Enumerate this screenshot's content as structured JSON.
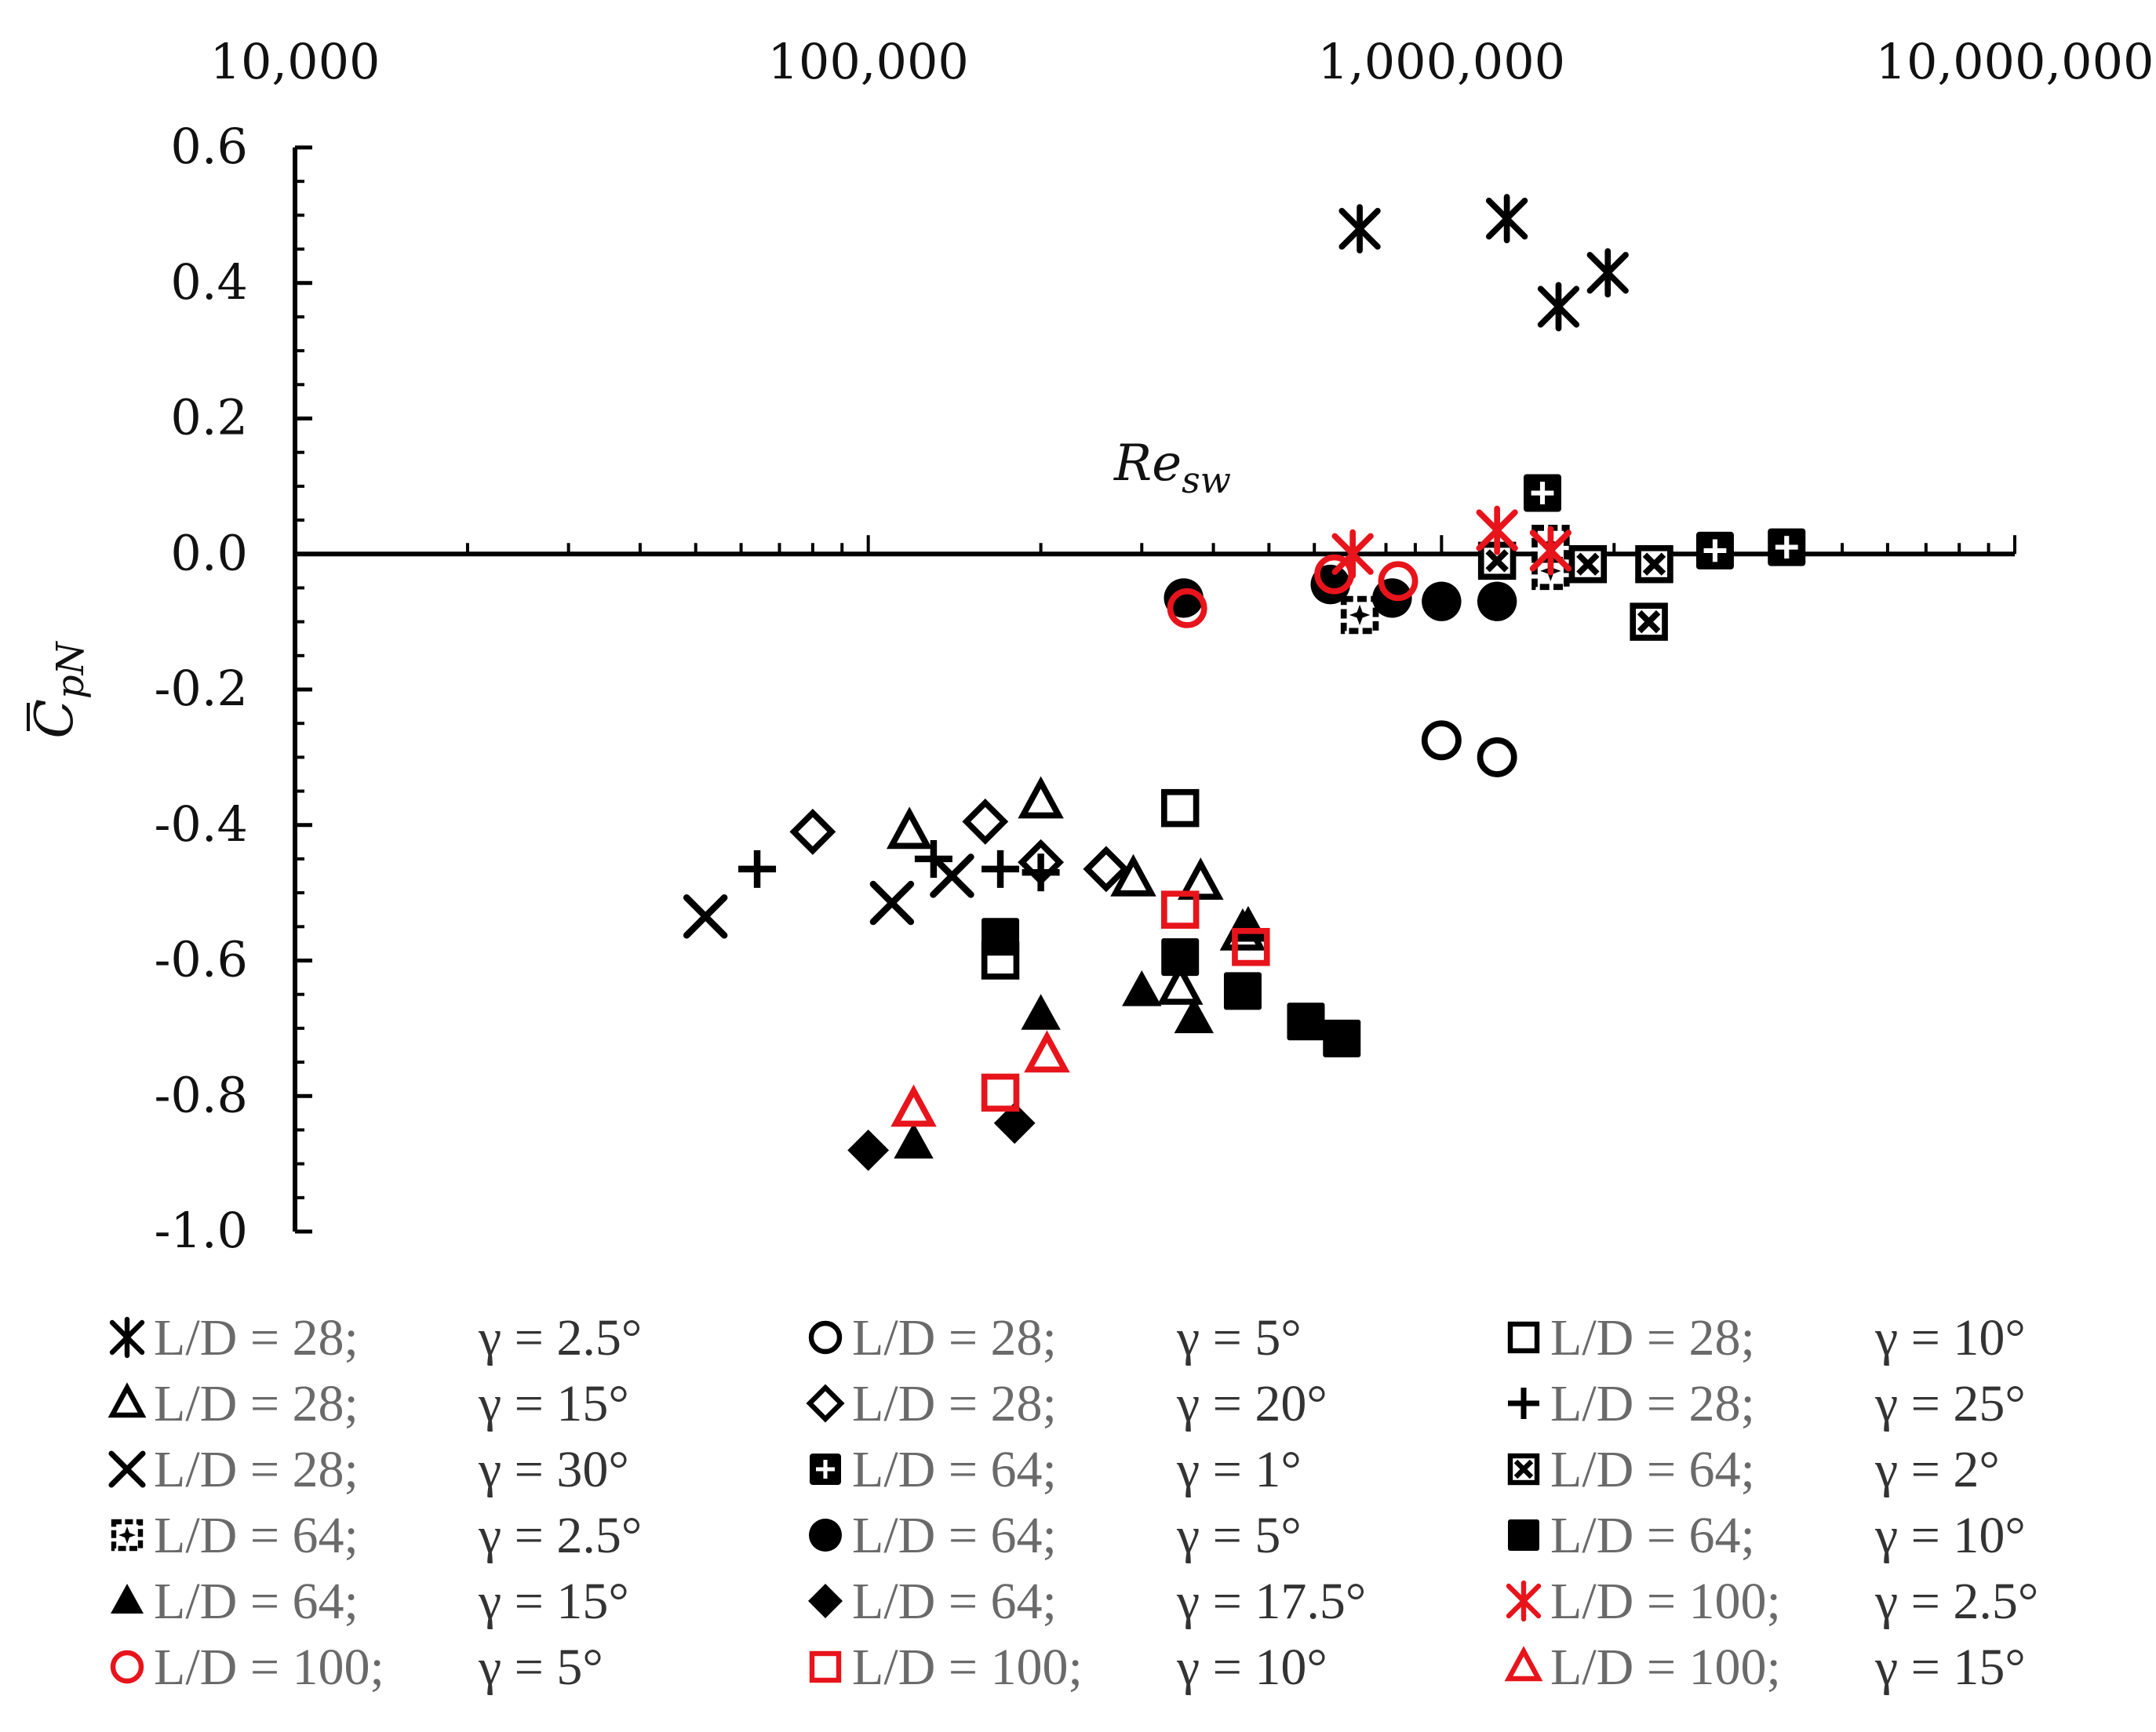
{
  "chart_data": {
    "type": "scatter",
    "x_scale": "log",
    "xlim": [
      10000,
      10000000
    ],
    "ylim": [
      -1.0,
      0.6
    ],
    "x_tick_labels": [
      "10,000",
      "100,000",
      "1,000,000",
      "10,000,000"
    ],
    "x_ticks": [
      10000,
      100000,
      1000000,
      10000000
    ],
    "y_ticks": [
      0.6,
      0.4,
      0.2,
      0.0,
      -0.2,
      -0.4,
      -0.6,
      -0.8,
      -1.0
    ],
    "y_tick_labels": [
      "0.6",
      "0.4",
      "0.2",
      "0.0",
      "-0.2",
      "-0.4",
      "-0.6",
      "-0.8",
      "-1.0"
    ],
    "xlabel_main": "Re",
    "xlabel_sub": "sw",
    "ylabel_main": "C",
    "ylabel_sub": "pN",
    "series": [
      {
        "name": "L/D = 28; γ = 2.5°",
        "ld": "L/D = 28;",
        "gamma": "γ = 2.5°",
        "marker": "asterisk",
        "color": "#000000",
        "points": [
          [
            720000,
            0.48
          ],
          [
            1300000,
            0.495
          ],
          [
            1600000,
            0.365
          ],
          [
            1950000,
            0.415
          ]
        ]
      },
      {
        "name": "L/D = 28; γ = 5°",
        "ld": "L/D = 28;",
        "gamma": "γ = 5°",
        "marker": "circle-open",
        "color": "#000000",
        "points": [
          [
            1000000,
            -0.275
          ],
          [
            1250000,
            -0.3
          ]
        ]
      },
      {
        "name": "L/D = 28; γ = 10°",
        "ld": "L/D = 28;",
        "gamma": "γ = 10°",
        "marker": "square-open",
        "color": "#000000",
        "points": [
          [
            350000,
            -0.375
          ],
          [
            170000,
            -0.6
          ]
        ]
      },
      {
        "name": "L/D = 28; γ = 15°",
        "ld": "L/D = 28;",
        "gamma": "γ = 15°",
        "marker": "triangle-open",
        "color": "#000000",
        "points": [
          [
            118000,
            -0.41
          ],
          [
            200000,
            -0.365
          ],
          [
            290000,
            -0.48
          ],
          [
            380000,
            -0.485
          ],
          [
            450000,
            -0.56
          ],
          [
            350000,
            -0.64
          ]
        ]
      },
      {
        "name": "L/D = 28; γ = 20°",
        "ld": "L/D = 28;",
        "gamma": "γ = 20°",
        "marker": "diamond-open",
        "color": "#000000",
        "points": [
          [
            80000,
            -0.41
          ],
          [
            160000,
            -0.395
          ],
          [
            200000,
            -0.455
          ],
          [
            260000,
            -0.465
          ]
        ]
      },
      {
        "name": "L/D = 28; γ = 25°",
        "ld": "L/D = 28;",
        "gamma": "γ = 25°",
        "marker": "plus",
        "color": "#000000",
        "points": [
          [
            64000,
            -0.465
          ],
          [
            130000,
            -0.45
          ],
          [
            170000,
            -0.465
          ],
          [
            200000,
            -0.47
          ]
        ]
      },
      {
        "name": "L/D = 28; γ = 30°",
        "ld": "L/D = 28;",
        "gamma": "γ = 30°",
        "marker": "cross",
        "color": "#000000",
        "points": [
          [
            52000,
            -0.535
          ],
          [
            110000,
            -0.515
          ],
          [
            140000,
            -0.475
          ]
        ]
      },
      {
        "name": "L/D = 64; γ = 1°",
        "ld": "L/D = 64;",
        "gamma": "γ = 1°",
        "marker": "square-plus",
        "color": "#000000",
        "points": [
          [
            1500000,
            0.09
          ],
          [
            3000000,
            0.005
          ],
          [
            4000000,
            0.01
          ]
        ]
      },
      {
        "name": "L/D = 64; γ = 2°",
        "ld": "L/D = 64;",
        "gamma": "γ = 2°",
        "marker": "square-cross",
        "color": "#000000",
        "points": [
          [
            1250000,
            -0.01
          ],
          [
            1800000,
            -0.015
          ],
          [
            2300000,
            -0.1
          ],
          [
            2350000,
            -0.015
          ]
        ]
      },
      {
        "name": "L/D = 64; γ = 2.5°",
        "ld": "L/D = 64;",
        "gamma": "γ = 2.5°",
        "marker": "square-dotted",
        "color": "#000000",
        "points": [
          [
            720000,
            -0.09
          ],
          [
            1550000,
            -0.025
          ],
          [
            1550000,
            0.015
          ]
        ]
      },
      {
        "name": "L/D = 64; γ = 5°",
        "ld": "L/D = 64;",
        "gamma": "γ = 5°",
        "marker": "circle-filled",
        "color": "#000000",
        "points": [
          [
            355000,
            -0.065
          ],
          [
            640000,
            -0.045
          ],
          [
            820000,
            -0.065
          ],
          [
            1000000,
            -0.07
          ],
          [
            1250000,
            -0.07
          ]
        ]
      },
      {
        "name": "L/D = 64; γ = 10°",
        "ld": "L/D = 64;",
        "gamma": "γ = 10°",
        "marker": "square-filled",
        "color": "#000000",
        "points": [
          [
            170000,
            -0.565
          ],
          [
            350000,
            -0.595
          ],
          [
            450000,
            -0.645
          ],
          [
            580000,
            -0.69
          ],
          [
            670000,
            -0.715
          ]
        ]
      },
      {
        "name": "L/D = 64; γ = 15°",
        "ld": "L/D = 64;",
        "gamma": "γ = 15°",
        "marker": "triangle-filled",
        "color": "#000000",
        "points": [
          [
            120000,
            -0.87
          ],
          [
            200000,
            -0.68
          ],
          [
            300000,
            -0.645
          ],
          [
            370000,
            -0.685
          ],
          [
            460000,
            -0.55
          ]
        ]
      },
      {
        "name": "L/D = 64; γ = 17.5°",
        "ld": "L/D = 64;",
        "gamma": "γ = 17.5°",
        "marker": "diamond-filled",
        "color": "#000000",
        "points": [
          [
            100000,
            -0.88
          ],
          [
            180000,
            -0.84
          ]
        ]
      },
      {
        "name": "L/D = 100; γ = 2.5°",
        "ld": "L/D = 100;",
        "gamma": "γ = 2.5°",
        "marker": "asterisk",
        "color": "#e8141b",
        "points": [
          [
            700000,
            0.0
          ],
          [
            1250000,
            0.035
          ],
          [
            1550000,
            0.005
          ]
        ]
      },
      {
        "name": "L/D = 100; γ = 5°",
        "ld": "L/D = 100;",
        "gamma": "γ = 5°",
        "marker": "circle-open",
        "color": "#e8141b",
        "points": [
          [
            360000,
            -0.08
          ],
          [
            650000,
            -0.03
          ],
          [
            840000,
            -0.04
          ]
        ]
      },
      {
        "name": "L/D = 100; γ = 10°",
        "ld": "L/D = 100;",
        "gamma": "γ = 10°",
        "marker": "square-open",
        "color": "#e8141b",
        "points": [
          [
            350000,
            -0.525
          ],
          [
            465000,
            -0.58
          ],
          [
            170000,
            -0.795
          ]
        ]
      },
      {
        "name": "L/D = 100; γ = 15°",
        "ld": "L/D = 100;",
        "gamma": "γ = 15°",
        "marker": "triangle-open",
        "color": "#e8141b",
        "points": [
          [
            120000,
            -0.82
          ],
          [
            205000,
            -0.74
          ]
        ]
      }
    ]
  }
}
